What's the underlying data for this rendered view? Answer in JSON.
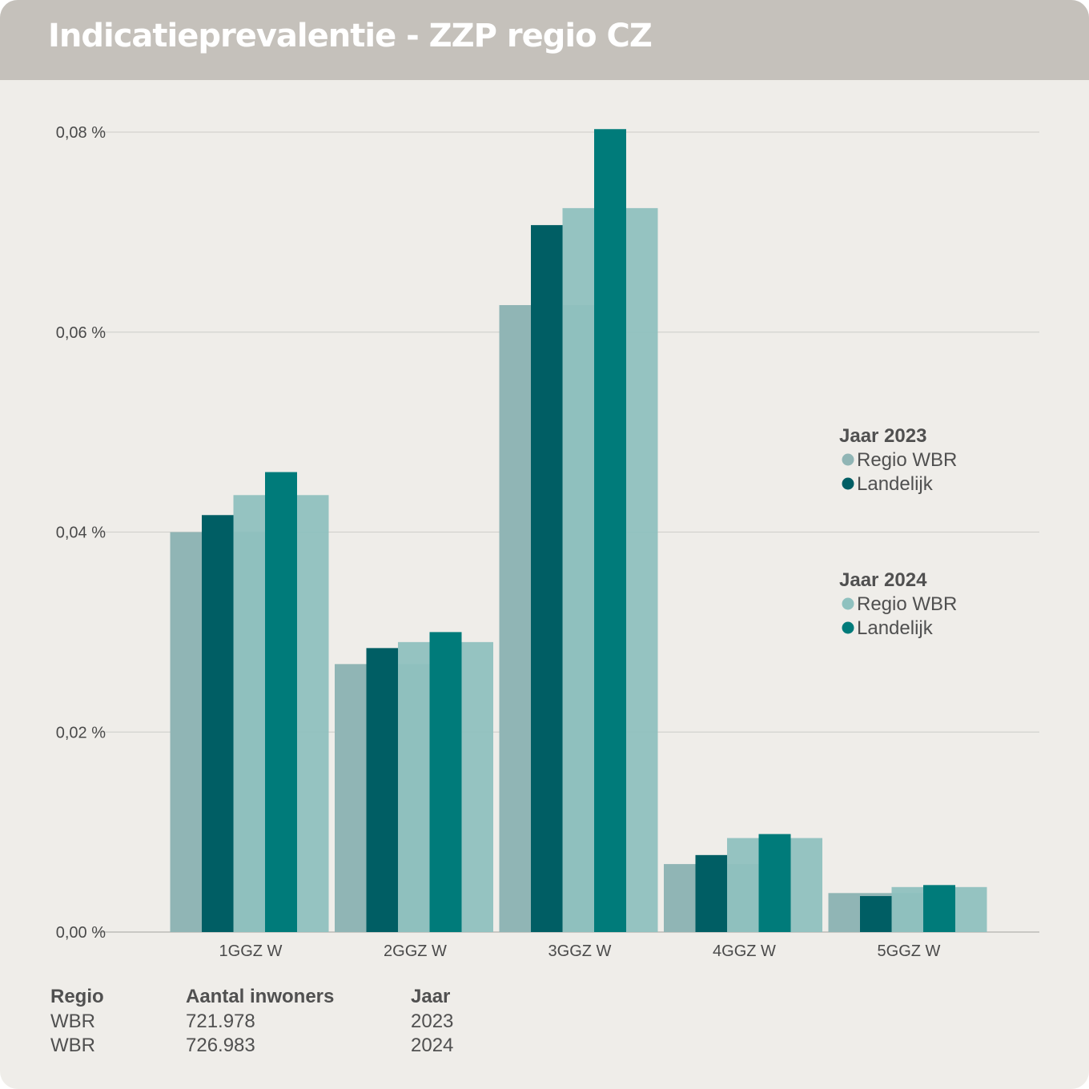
{
  "header": {
    "title": "Indicatieprevalentie - ZZP regio CZ"
  },
  "colors": {
    "regio_2023": "#90b5b5",
    "landelijk_2023": "#005e64",
    "regio_2024": "#8fc1bf",
    "landelijk_2024": "#007b7a",
    "grid": "#d3d2ce",
    "axis": "#c9c8c4"
  },
  "chart_data": {
    "type": "bar",
    "title": "Indicatieprevalentie - ZZP regio CZ",
    "categories": [
      "1GGZ W",
      "2GGZ W",
      "3GGZ W",
      "4GGZ W",
      "5GGZ W"
    ],
    "ylim": [
      0,
      0.08
    ],
    "yticks": [
      "0,00 %",
      "0,02 %",
      "0,04 %",
      "0,06 %",
      "0,08 %"
    ],
    "ytick_values": [
      0,
      0.02,
      0.04,
      0.06,
      0.08
    ],
    "grid": true,
    "legend_position": "right",
    "series": [
      {
        "name": "Regio WBR",
        "year": "Jaar 2023",
        "values": [
          0.04,
          0.0268,
          0.0627,
          0.0068,
          0.0039
        ]
      },
      {
        "name": "Landelijk",
        "year": "Jaar 2023",
        "values": [
          0.0417,
          0.0284,
          0.0707,
          0.0077,
          0.0036
        ]
      },
      {
        "name": "Regio WBR",
        "year": "Jaar 2024",
        "values": [
          0.0437,
          0.029,
          0.0724,
          0.0094,
          0.0045
        ]
      },
      {
        "name": "Landelijk",
        "year": "Jaar 2024",
        "values": [
          0.046,
          0.03,
          0.0803,
          0.0098,
          0.0047
        ]
      }
    ]
  },
  "legend": {
    "groups": [
      {
        "title": "Jaar 2023",
        "items": [
          "Regio WBR",
          "Landelijk"
        ]
      },
      {
        "title": "Jaar 2024",
        "items": [
          "Regio WBR",
          "Landelijk"
        ]
      }
    ]
  },
  "info_table": {
    "headers": [
      "Regio",
      "Aantal inwoners",
      "Jaar"
    ],
    "rows": [
      [
        "WBR",
        "721.978",
        "2023"
      ],
      [
        "WBR",
        "726.983",
        "2024"
      ]
    ]
  }
}
